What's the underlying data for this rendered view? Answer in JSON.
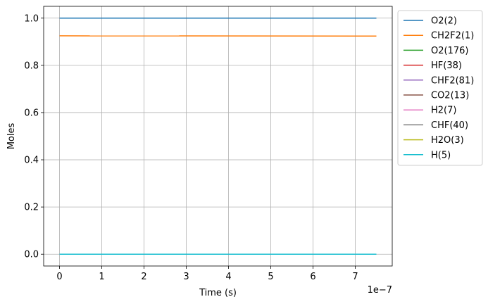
{
  "chart_data": {
    "type": "line",
    "xlabel": "Time  (s)",
    "ylabel": "Moles",
    "x_offset_label": "1e−7",
    "xlim": [
      -3.75e-08,
      7.875e-07
    ],
    "ylim": [
      -0.05,
      1.05
    ],
    "xticks": [
      0,
      1e-07,
      2e-07,
      3e-07,
      4e-07,
      5e-07,
      6e-07,
      7e-07
    ],
    "xtick_labels": [
      "0",
      "1",
      "2",
      "3",
      "4",
      "5",
      "6",
      "7"
    ],
    "yticks": [
      0.0,
      0.2,
      0.4,
      0.6,
      0.8,
      1.0
    ],
    "ytick_labels": [
      "0.0",
      "0.2",
      "0.4",
      "0.6",
      "0.8",
      "1.0"
    ],
    "grid": true,
    "legend_position": "outside-right",
    "x": [
      0,
      7.5e-07
    ],
    "series": [
      {
        "name": "O2(2)",
        "color": "#1f77b4",
        "values": [
          1.0,
          1.0
        ]
      },
      {
        "name": "CH2F2(1)",
        "color": "#ff7f0e",
        "values": [
          0.925,
          0.924
        ]
      },
      {
        "name": "O2(176)",
        "color": "#2ca02c",
        "values": [
          0.0,
          0.0
        ]
      },
      {
        "name": "HF(38)",
        "color": "#d62728",
        "values": [
          0.0,
          0.0
        ]
      },
      {
        "name": "CHF2(81)",
        "color": "#9467bd",
        "values": [
          0.0,
          0.0
        ]
      },
      {
        "name": "CO2(13)",
        "color": "#8c564b",
        "values": [
          0.0,
          0.0
        ]
      },
      {
        "name": "H2(7)",
        "color": "#e377c2",
        "values": [
          0.0,
          0.0
        ]
      },
      {
        "name": "CHF(40)",
        "color": "#7f7f7f",
        "values": [
          0.0,
          0.0
        ]
      },
      {
        "name": "H2O(3)",
        "color": "#bcbd22",
        "values": [
          0.0,
          0.0
        ]
      },
      {
        "name": "H(5)",
        "color": "#17becf",
        "values": [
          0.0,
          0.0
        ]
      }
    ]
  }
}
